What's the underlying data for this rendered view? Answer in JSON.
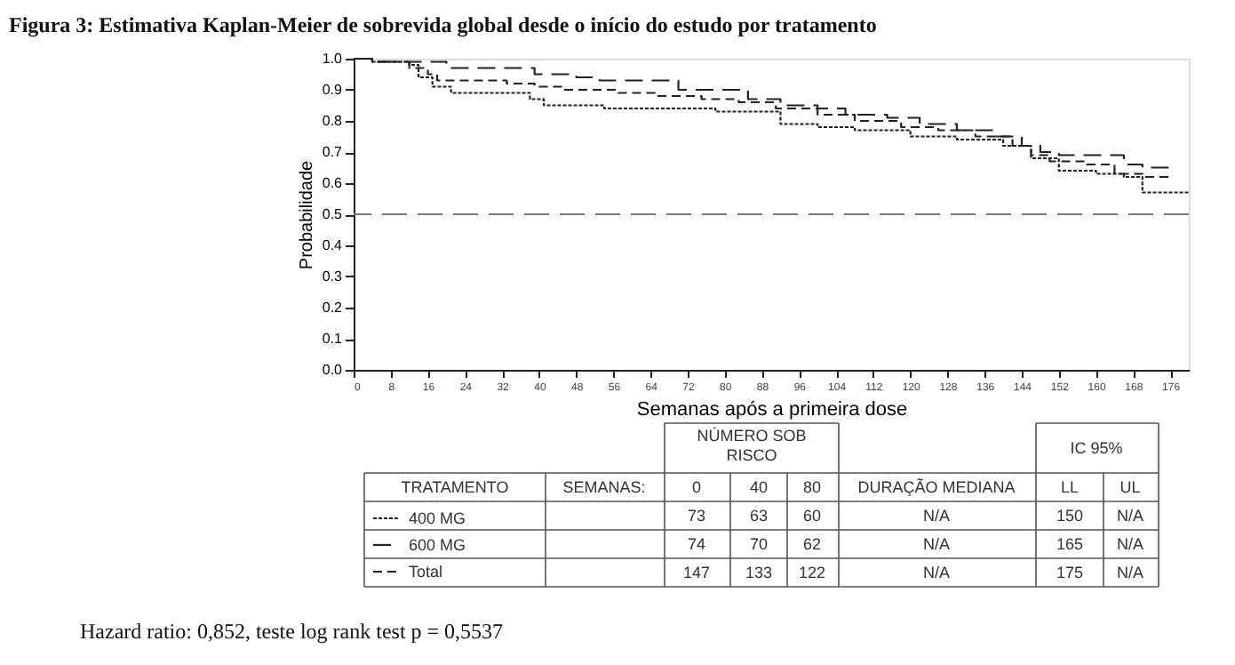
{
  "chart_data": {
    "type": "step",
    "title": "Figura 3: Estimativa Kaplan-Meier de sobrevida global desde o início do estudo por tratamento",
    "xlabel": "Semanas após a primeira dose",
    "ylabel": "Probabilidade",
    "xlim": [
      0,
      180
    ],
    "xticks": [
      0,
      8,
      16,
      24,
      32,
      40,
      48,
      56,
      64,
      72,
      80,
      88,
      96,
      104,
      112,
      120,
      128,
      136,
      144,
      152,
      160,
      168,
      176
    ],
    "ylim": [
      0,
      1
    ],
    "yticks": [
      {
        "value": 0,
        "label": "0.0"
      },
      0.1,
      0.2,
      0.3,
      0.4,
      0.5,
      0.6,
      0.7,
      0.8,
      0.9,
      {
        "value": 1,
        "label": "1.0"
      }
    ],
    "grid": false,
    "legend": "bottom",
    "marker": "none",
    "series": [
      {
        "name": "400 MG",
        "color": "#222222",
        "line_style": "dotted",
        "x": [
          0,
          4,
          12,
          14,
          17,
          21,
          38,
          41,
          54,
          78,
          92,
          100,
          108,
          120,
          130,
          140,
          146,
          152,
          160,
          166,
          170,
          180
        ],
        "values": [
          1,
          0.99,
          0.98,
          0.94,
          0.91,
          0.89,
          0.87,
          0.85,
          0.84,
          0.83,
          0.79,
          0.78,
          0.77,
          0.75,
          0.74,
          0.72,
          0.68,
          0.64,
          0.63,
          0.62,
          0.57,
          0.57
        ]
      },
      {
        "name": "600 MG",
        "color": "#222222",
        "line_style": "dashed",
        "x": [
          0,
          4,
          20,
          39,
          48,
          53,
          70,
          85,
          92,
          100,
          106,
          115,
          122,
          130,
          138,
          144,
          148,
          152,
          160,
          166,
          170,
          176
        ],
        "values": [
          1,
          0.99,
          0.97,
          0.95,
          0.94,
          0.93,
          0.9,
          0.87,
          0.85,
          0.84,
          0.82,
          0.81,
          0.79,
          0.77,
          0.75,
          0.72,
          0.7,
          0.69,
          0.69,
          0.66,
          0.65,
          0.65
        ]
      },
      {
        "name": "Total",
        "color": "#222222",
        "line_style": "dashed",
        "x": [
          0,
          4,
          12,
          16,
          18,
          33,
          39,
          45,
          57,
          65,
          75,
          83,
          91,
          100,
          108,
          118,
          126,
          134,
          142,
          146,
          150,
          158,
          164,
          170,
          176
        ],
        "values": [
          1,
          0.99,
          0.97,
          0.95,
          0.93,
          0.92,
          0.91,
          0.9,
          0.89,
          0.88,
          0.87,
          0.86,
          0.84,
          0.82,
          0.8,
          0.78,
          0.77,
          0.75,
          0.72,
          0.69,
          0.67,
          0.66,
          0.63,
          0.62,
          0.62
        ]
      }
    ],
    "ref_lines": [
      {
        "axis": "y",
        "value": 0.5,
        "color": "#777777",
        "line_style": "dashed"
      }
    ],
    "annotations": [
      "NÚMERO SOB\nRISCO",
      "IC 95%",
      "TRATAMENTO",
      "SEMANAS:",
      "0",
      "40",
      "80",
      "DURAÇÃO  MEDIANA",
      "LL",
      "UL",
      "73",
      "63",
      "60",
      "N/A",
      "150",
      "N/A",
      "74",
      "70",
      "62",
      "N/A",
      "165",
      "N/A",
      "147",
      "133",
      "122",
      "N/A",
      "175",
      "N/A",
      "Hazard ratio: 0,852, teste log rank test p = 0,5537"
    ]
  }
}
